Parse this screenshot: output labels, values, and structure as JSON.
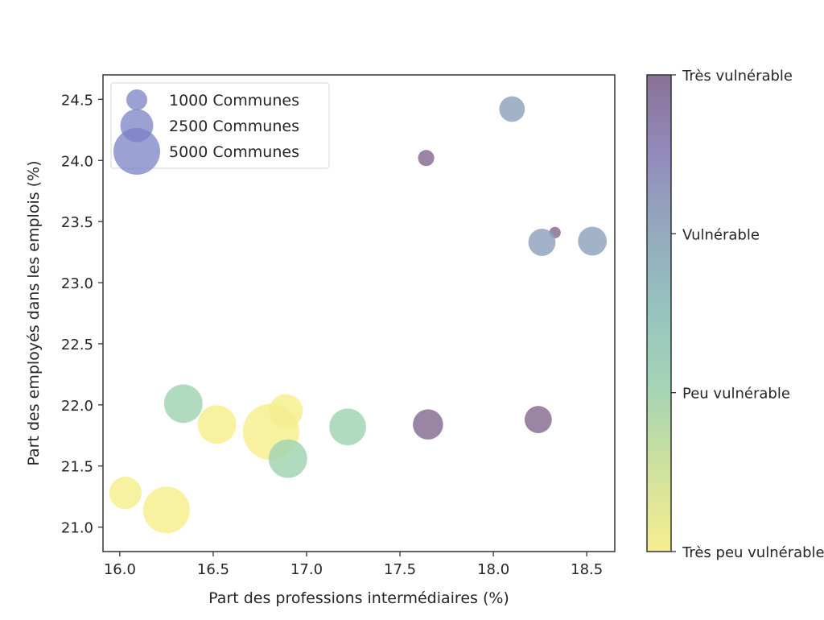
{
  "chart_data": {
    "type": "scatter",
    "title": "",
    "xlabel": "Part des professions intermédiaires (%)",
    "ylabel": "Part des employés dans les emplois (%)",
    "xlim": [
      15.91,
      18.65
    ],
    "ylim": [
      20.8,
      24.7
    ],
    "xticks": [
      16.0,
      16.5,
      17.0,
      17.5,
      18.0,
      18.5
    ],
    "xtick_labels": [
      "16.0",
      "16.5",
      "17.0",
      "17.5",
      "18.0",
      "18.5"
    ],
    "yticks": [
      21.0,
      21.5,
      22.0,
      22.5,
      23.0,
      23.5,
      24.0,
      24.5
    ],
    "ytick_labels": [
      "21.0",
      "21.5",
      "22.0",
      "22.5",
      "23.0",
      "23.5",
      "24.0",
      "24.5"
    ],
    "grid": false,
    "size_variable": "Communes",
    "color_variable": "Vulnérabilité",
    "points": [
      {
        "x": 18.1,
        "y": 24.42,
        "communes": 1500,
        "category": "Vulnérable"
      },
      {
        "x": 17.64,
        "y": 24.02,
        "communes": 600,
        "category": "Très vulnérable"
      },
      {
        "x": 18.33,
        "y": 23.41,
        "communes": 300,
        "category": "Très vulnérable"
      },
      {
        "x": 18.26,
        "y": 23.33,
        "communes": 1700,
        "category": "Vulnérable"
      },
      {
        "x": 18.53,
        "y": 23.34,
        "communes": 1900,
        "category": "Vulnérable"
      },
      {
        "x": 16.34,
        "y": 22.01,
        "communes": 3400,
        "category": "Peu vulnérable"
      },
      {
        "x": 16.52,
        "y": 21.84,
        "communes": 3400,
        "category": "Très peu vulnérable"
      },
      {
        "x": 16.81,
        "y": 21.78,
        "communes": 7300,
        "category": "Très peu vulnérable"
      },
      {
        "x": 16.89,
        "y": 21.95,
        "communes": 2600,
        "category": "Très peu vulnérable"
      },
      {
        "x": 16.9,
        "y": 21.56,
        "communes": 3400,
        "category": "Peu vulnérable"
      },
      {
        "x": 17.22,
        "y": 21.82,
        "communes": 3100,
        "category": "Peu vulnérable"
      },
      {
        "x": 17.65,
        "y": 21.84,
        "communes": 2100,
        "category": "Très vulnérable"
      },
      {
        "x": 18.24,
        "y": 21.88,
        "communes": 1700,
        "category": "Très vulnérable"
      },
      {
        "x": 16.03,
        "y": 21.28,
        "communes": 2400,
        "category": "Très peu vulnérable"
      },
      {
        "x": 16.25,
        "y": 21.14,
        "communes": 5000,
        "category": "Très peu vulnérable"
      }
    ],
    "legend": {
      "placement": "top-left",
      "entries": [
        {
          "label": "1000 Communes",
          "communes": 1000
        },
        {
          "label": "2500 Communes",
          "communes": 2500
        },
        {
          "label": "5000 Communes",
          "communes": 5000
        }
      ],
      "marker_color": "#7b82c4"
    },
    "colorbar": {
      "placement": "right",
      "ticks": [
        "Très peu vulnérable",
        "Peu vulnérable",
        "Vulnérable",
        "Très vulnérable"
      ],
      "colormap": [
        "#f6ee8f",
        "#d1e29d",
        "#a6d5b4",
        "#97c4bf",
        "#93abbd",
        "#938bbc",
        "#897395"
      ]
    },
    "category_colors": {
      "Très peu vulnérable": "#f6ee8f",
      "Peu vulnérable": "#a3d5b4",
      "Vulnérable": "#91a5c0",
      "Très vulnérable": "#8a7094"
    },
    "marker_alpha": 0.6
  }
}
